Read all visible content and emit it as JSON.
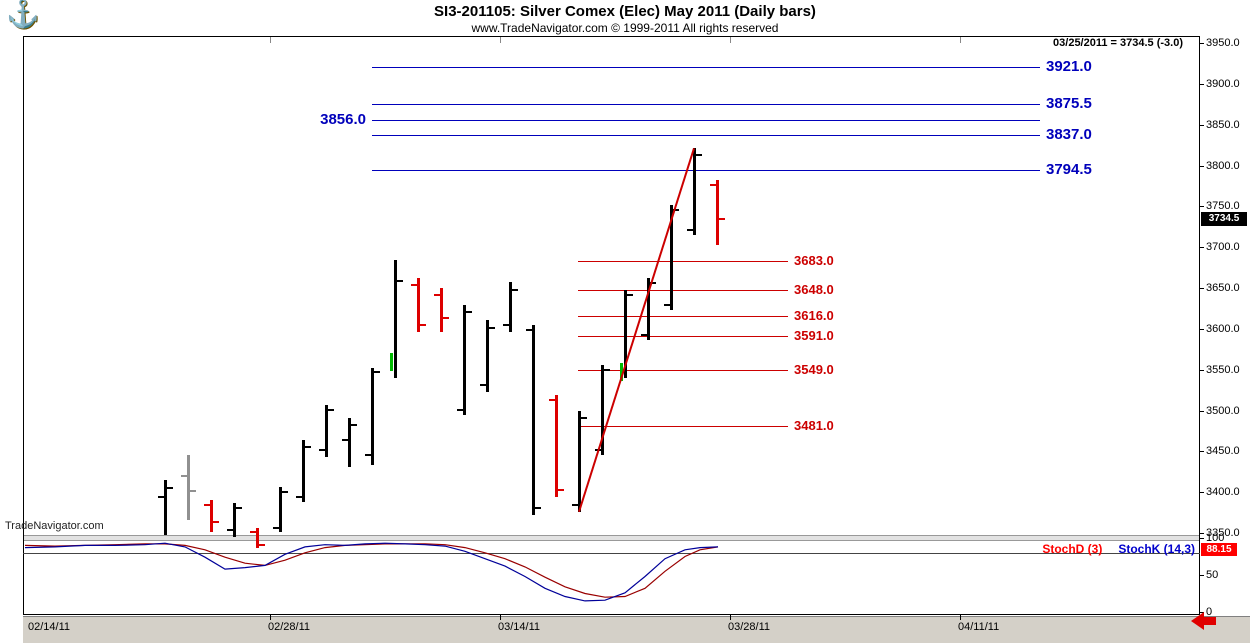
{
  "header": {
    "title": "SI3-201105:  Silver Comex (Elec) May 2011  (Daily bars)",
    "subtitle": "www.TradeNavigator.com © 1999-2011 All rights reserved",
    "quote": "03/25/2011 = 3734.5 (-3.0)",
    "logo_icon": "trade-navigator-anchor-logo"
  },
  "watermark": "TradeNavigator.com",
  "last_price_label": "3734.5",
  "stoch_value_label": "88.15",
  "axis": {
    "price_ticks": [
      "3950.0",
      "3900.0",
      "3850.0",
      "3800.0",
      "3750.0",
      "3700.0",
      "3650.0",
      "3600.0",
      "3550.0",
      "3500.0",
      "3450.0",
      "3400.0",
      "3350.0"
    ],
    "stoch_ticks": [
      "100",
      "50",
      "0"
    ],
    "dates": [
      "02/14/11",
      "02/28/11",
      "03/14/11",
      "03/28/11",
      "04/11/11"
    ]
  },
  "chart_data": {
    "type": "bar",
    "subtype": "ohlc-daily-bars",
    "title": "SI3-201105: Silver Comex (Elec) May 2011 (Daily bars)",
    "symbol": "SI3-201105",
    "contract": "Silver Comex (Elec) May 2011",
    "bar_type": "Daily bars",
    "last": {
      "date": "03/25/2011",
      "close": 3734.5,
      "change": -3.0
    },
    "ylim": [
      3350,
      3950
    ],
    "price_step": 50,
    "levels_blue": [
      {
        "price": 3921.0,
        "label": "3921.0",
        "side": "right"
      },
      {
        "price": 3875.5,
        "label": "3875.5",
        "side": "right"
      },
      {
        "price": 3856.0,
        "label": "3856.0",
        "side": "left"
      },
      {
        "price": 3837.0,
        "label": "3837.0",
        "side": "right"
      },
      {
        "price": 3794.5,
        "label": "3794.5",
        "side": "right"
      }
    ],
    "levels_red": [
      {
        "price": 3683.0,
        "label": "3683.0"
      },
      {
        "price": 3648.0,
        "label": "3648.0"
      },
      {
        "price": 3616.0,
        "label": "3616.0"
      },
      {
        "price": 3591.0,
        "label": "3591.0"
      },
      {
        "price": 3549.0,
        "label": "3549.0"
      },
      {
        "price": 3481.0,
        "label": "3481.0"
      }
    ],
    "bars": [
      {
        "open": 3394,
        "high": 3415,
        "low": 3348,
        "close": 3405,
        "color": "black"
      },
      {
        "open": 3420,
        "high": 3446,
        "low": 3366,
        "close": 3402,
        "color": "gray"
      },
      {
        "open": 3384,
        "high": 3390,
        "low": 3351,
        "close": 3363,
        "color": "red"
      },
      {
        "open": 3354,
        "high": 3387,
        "low": 3345,
        "close": 3381,
        "color": "black"
      },
      {
        "open": 3351,
        "high": 3356,
        "low": 3332,
        "close": 3335,
        "color": "red"
      },
      {
        "open": 3356,
        "high": 3406,
        "low": 3351,
        "close": 3400,
        "color": "black"
      },
      {
        "open": 3394,
        "high": 3464,
        "low": 3388,
        "close": 3455,
        "color": "black"
      },
      {
        "open": 3452,
        "high": 3507,
        "low": 3443,
        "close": 3501,
        "color": "black"
      },
      {
        "open": 3464,
        "high": 3491,
        "low": 3431,
        "close": 3482,
        "color": "black"
      },
      {
        "open": 3446,
        "high": 3552,
        "low": 3433,
        "close": 3547,
        "color": "black"
      },
      {
        "open": 3560,
        "high": 3684,
        "low": 3540,
        "close": 3659,
        "color": "black",
        "green_open": true
      },
      {
        "open": 3654,
        "high": 3662,
        "low": 3596,
        "close": 3605,
        "color": "red"
      },
      {
        "open": 3641,
        "high": 3650,
        "low": 3596,
        "close": 3613,
        "color": "red"
      },
      {
        "open": 3501,
        "high": 3629,
        "low": 3495,
        "close": 3621,
        "color": "black"
      },
      {
        "open": 3531,
        "high": 3611,
        "low": 3523,
        "close": 3601,
        "color": "black"
      },
      {
        "open": 3605,
        "high": 3657,
        "low": 3596,
        "close": 3648,
        "color": "black"
      },
      {
        "open": 3599,
        "high": 3605,
        "low": 3372,
        "close": 3381,
        "color": "black"
      },
      {
        "open": 3513,
        "high": 3519,
        "low": 3394,
        "close": 3403,
        "color": "red"
      },
      {
        "open": 3384,
        "high": 3500,
        "low": 3376,
        "close": 3491,
        "color": "black"
      },
      {
        "open": 3452,
        "high": 3556,
        "low": 3446,
        "close": 3550,
        "color": "black"
      },
      {
        "open": 3547,
        "high": 3648,
        "low": 3540,
        "close": 3641,
        "color": "black",
        "green_open": true
      },
      {
        "open": 3593,
        "high": 3662,
        "low": 3586,
        "close": 3656,
        "color": "black"
      },
      {
        "open": 3629,
        "high": 3752,
        "low": 3623,
        "close": 3746,
        "color": "black"
      },
      {
        "open": 3721,
        "high": 3821,
        "low": 3715,
        "close": 3813,
        "color": "black"
      },
      {
        "open": 3776,
        "high": 3782,
        "low": 3703,
        "close": 3734.5,
        "color": "red"
      }
    ],
    "trend_line": {
      "from_bar": 18,
      "from_price": 3376,
      "to_bar": 23,
      "to_price": 3821,
      "color": "#cc0000"
    },
    "stochastic": {
      "d_label": "StochD (3)",
      "k_label": "StochK (14,3)",
      "value": 88.15,
      "overbought": 80,
      "ylim": [
        0,
        100
      ],
      "k_series": [
        [
          25,
          87
        ],
        [
          55,
          88
        ],
        [
          85,
          90
        ],
        [
          115,
          90
        ],
        [
          145,
          91
        ],
        [
          165,
          93
        ],
        [
          185,
          88
        ],
        [
          205,
          74
        ],
        [
          225,
          58
        ],
        [
          245,
          60
        ],
        [
          265,
          63
        ],
        [
          285,
          78
        ],
        [
          305,
          88
        ],
        [
          325,
          91
        ],
        [
          345,
          90
        ],
        [
          365,
          92
        ],
        [
          385,
          93
        ],
        [
          405,
          92
        ],
        [
          425,
          91
        ],
        [
          445,
          89
        ],
        [
          465,
          82
        ],
        [
          485,
          72
        ],
        [
          505,
          62
        ],
        [
          525,
          48
        ],
        [
          545,
          32
        ],
        [
          565,
          21
        ],
        [
          585,
          15
        ],
        [
          605,
          16
        ],
        [
          625,
          26
        ],
        [
          645,
          48
        ],
        [
          665,
          72
        ],
        [
          685,
          84
        ],
        [
          700,
          87
        ],
        [
          718,
          88
        ]
      ],
      "d_series": [
        [
          25,
          90
        ],
        [
          55,
          89
        ],
        [
          85,
          90
        ],
        [
          115,
          91
        ],
        [
          145,
          92
        ],
        [
          165,
          92
        ],
        [
          185,
          90
        ],
        [
          205,
          84
        ],
        [
          225,
          74
        ],
        [
          245,
          66
        ],
        [
          265,
          63
        ],
        [
          285,
          70
        ],
        [
          305,
          80
        ],
        [
          325,
          87
        ],
        [
          345,
          90
        ],
        [
          365,
          91
        ],
        [
          385,
          92
        ],
        [
          405,
          92
        ],
        [
          425,
          92
        ],
        [
          445,
          91
        ],
        [
          465,
          87
        ],
        [
          485,
          80
        ],
        [
          505,
          72
        ],
        [
          525,
          61
        ],
        [
          545,
          47
        ],
        [
          565,
          34
        ],
        [
          585,
          25
        ],
        [
          605,
          20
        ],
        [
          625,
          21
        ],
        [
          645,
          32
        ],
        [
          665,
          55
        ],
        [
          685,
          75
        ],
        [
          700,
          84
        ],
        [
          718,
          88
        ]
      ]
    },
    "colors": {
      "black": "#000000",
      "red": "#dd0000",
      "gray": "#909090",
      "green": "#00bb00",
      "level_blue": "#0000bb",
      "level_red": "#cc0000",
      "stoch_k": "#000099",
      "stoch_d": "#990000",
      "last_bg": "#000000",
      "stoch_value_bg": "#ff0000"
    }
  }
}
